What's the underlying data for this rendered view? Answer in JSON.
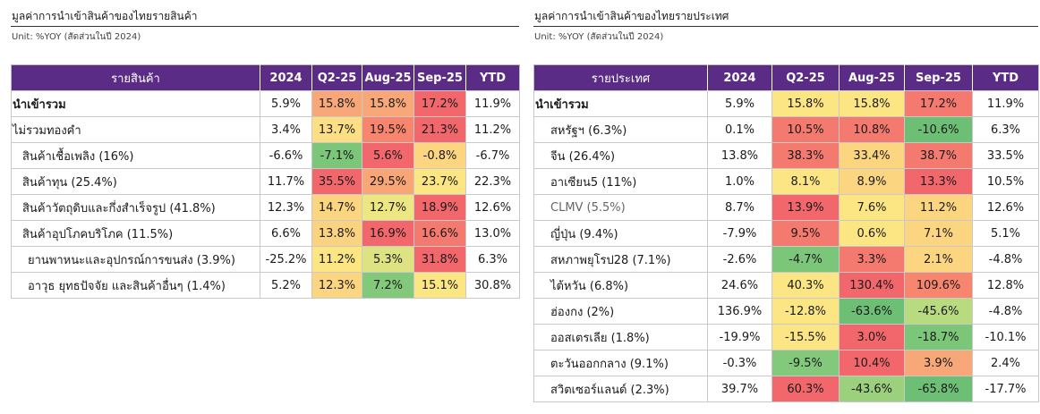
{
  "left": {
    "title": "มูลค่าการนำเข้าสินค้าของไทยรายสินค้า",
    "unit": "Unit: %YOY (สัดส่วนในปี 2024)",
    "headers": [
      "รายสินค้า",
      "2024",
      "Q2-25",
      "Aug-25",
      "Sep-25",
      "YTD"
    ],
    "rows": [
      {
        "name": "นำเข้ารวม",
        "v2024": "5.9%",
        "q2": "15.8%",
        "aug": "15.8%",
        "sep": "17.2%",
        "ytd": "11.9%",
        "c": [
          "#f8a878",
          "#f8a878",
          "#f2676b"
        ]
      },
      {
        "name": "ไม่รวมทองคำ",
        "v2024": "3.4%",
        "q2": "13.7%",
        "aug": "19.5%",
        "sep": "21.3%",
        "ytd": "11.2%",
        "c": [
          "#fcdf84",
          "#f8866f",
          "#f2676b"
        ]
      },
      {
        "name": "สินค้าเชื้อเพลิง (16%)",
        "v2024": "-6.6%",
        "q2": "-7.1%",
        "aug": "5.6%",
        "sep": "-0.8%",
        "ytd": "-6.7%",
        "c": [
          "#7cc67a",
          "#f2676b",
          "#fcd581"
        ]
      },
      {
        "name": "สินค้าทุน (25.4%)",
        "v2024": "11.7%",
        "q2": "35.5%",
        "aug": "29.5%",
        "sep": "23.7%",
        "ytd": "22.3%",
        "c": [
          "#f2676b",
          "#f9a677",
          "#fce583"
        ]
      },
      {
        "name": "สินค้าวัตถุดิบและกึ่งสำเร็จรูป (41.8%)",
        "v2024": "12.3%",
        "q2": "14.7%",
        "aug": "12.7%",
        "sep": "18.9%",
        "ytd": "12.6%",
        "c": [
          "#fcd581",
          "#ede783",
          "#f2676b"
        ]
      },
      {
        "name": "สินค้าอุปโภคบริโภค (11.5%)",
        "v2024": "6.6%",
        "q2": "13.8%",
        "aug": "16.9%",
        "sep": "16.6%",
        "ytd": "13.0%",
        "c": [
          "#fbd280",
          "#f2676b",
          "#f47a70"
        ]
      },
      {
        "name": "ยานพาหนะและอุปกรณ์การขนส่ง (3.9%)",
        "v2024": "-25.2%",
        "q2": "11.2%",
        "aug": "5.3%",
        "sep": "31.8%",
        "ytd": "6.3%",
        "c": [
          "#fce583",
          "#dde282",
          "#f2676b"
        ]
      },
      {
        "name": "อาวุธ ยุทธปัจจัย และสินค้าอื่นๆ (1.4%)",
        "v2024": "5.2%",
        "q2": "12.3%",
        "aug": "7.2%",
        "sep": "15.1%",
        "ytd": "30.8%",
        "c": [
          "#fcd581",
          "#83c97b",
          "#fce583"
        ]
      }
    ]
  },
  "right": {
    "title": "มูลค่าการนำเข้าสินค้าของไทยรายประเทศ",
    "unit": "Unit: %YOY (สัดส่วนในปี 2024)",
    "headers": [
      "รายประเทศ",
      "2024",
      "Q2-25",
      "Aug-25",
      "Sep-25",
      "YTD"
    ],
    "rows": [
      {
        "name": "นำเข้ารวม",
        "v2024": "5.9%",
        "q2": "15.8%",
        "aug": "15.8%",
        "sep": "17.2%",
        "ytd": "11.9%",
        "c": [
          "#fce583",
          "#fce583",
          "#f47a70"
        ]
      },
      {
        "name": "สหรัฐฯ (6.3%)",
        "v2024": "0.1%",
        "q2": "10.5%",
        "aug": "10.8%",
        "sep": "-10.6%",
        "ytd": "6.3%",
        "c": [
          "#f47a70",
          "#f47a70",
          "#6cbf75"
        ]
      },
      {
        "name": "จีน (26.4%)",
        "v2024": "13.8%",
        "q2": "38.3%",
        "aug": "33.4%",
        "sep": "38.7%",
        "ytd": "33.5%",
        "c": [
          "#f47a70",
          "#fcd581",
          "#f47a70"
        ]
      },
      {
        "name": "อาเซียน5 (11%)",
        "v2024": "1.0%",
        "q2": "8.1%",
        "aug": "8.9%",
        "sep": "13.3%",
        "ytd": "10.5%",
        "c": [
          "#fce583",
          "#fcd581",
          "#f2676b"
        ]
      },
      {
        "name": "CLMV (5.5%)",
        "v2024": "8.7%",
        "q2": "13.9%",
        "aug": "7.6%",
        "sep": "11.2%",
        "ytd": "12.6%",
        "c": [
          "#f2676b",
          "#fce583",
          "#fcd581"
        ]
      },
      {
        "name": "ญี่ปุ่น (9.4%)",
        "v2024": "-7.9%",
        "q2": "9.5%",
        "aug": "0.6%",
        "sep": "7.1%",
        "ytd": "5.1%",
        "c": [
          "#f47a70",
          "#fce583",
          "#fcd581"
        ]
      },
      {
        "name": "สหภาพยุโรป28 (7.1%)",
        "v2024": "-2.6%",
        "q2": "-4.7%",
        "aug": "3.3%",
        "sep": "2.1%",
        "ytd": "-4.8%",
        "c": [
          "#7cc67a",
          "#f47a70",
          "#fcd581"
        ]
      },
      {
        "name": "ไต้หวัน (6.8%)",
        "v2024": "24.6%",
        "q2": "40.3%",
        "aug": "130.4%",
        "sep": "109.6%",
        "ytd": "12.8%",
        "c": [
          "#fce583",
          "#f2676b",
          "#f8866f"
        ]
      },
      {
        "name": "ฮ่องกง (2%)",
        "v2024": "136.9%",
        "q2": "-12.8%",
        "aug": "-63.6%",
        "sep": "-45.6%",
        "ytd": "-4.8%",
        "c": [
          "#fce583",
          "#6cbf75",
          "#b9db80"
        ]
      },
      {
        "name": "ออสเตรเลีย (1.8%)",
        "v2024": "-19.9%",
        "q2": "-15.5%",
        "aug": "3.0%",
        "sep": "-18.7%",
        "ytd": "-10.1%",
        "c": [
          "#fce583",
          "#f2676b",
          "#7cc67a"
        ]
      },
      {
        "name": "ตะวันออกกลาง (9.1%)",
        "v2024": "-0.3%",
        "q2": "-9.5%",
        "aug": "10.4%",
        "sep": "3.9%",
        "ytd": "2.4%",
        "c": [
          "#83c97b",
          "#f2676b",
          "#f8a878"
        ]
      },
      {
        "name": "สวิตเซอร์แลนด์ (2.3%)",
        "v2024": "39.7%",
        "q2": "60.3%",
        "aug": "-43.6%",
        "sep": "-65.8%",
        "ytd": "-17.7%",
        "c": [
          "#f2676b",
          "#9bd07d",
          "#6cbf75"
        ]
      }
    ]
  }
}
